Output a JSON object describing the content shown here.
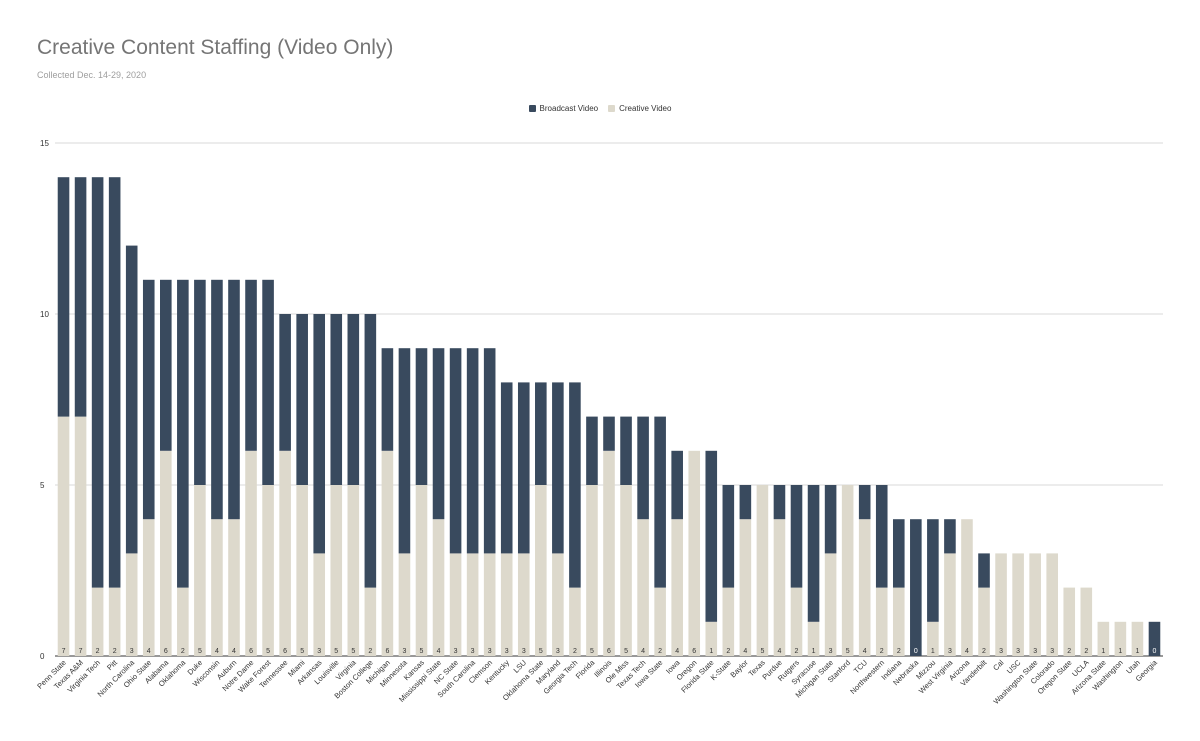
{
  "title": "Creative Content Staffing (Video Only)",
  "subtitle": "Collected Dec. 14-29, 2020",
  "colors": {
    "broadcast": "#394a5e",
    "creative": "#ddd9cc",
    "grid": "#d9d9d9",
    "axis": "#333333"
  },
  "chart_data": {
    "type": "bar",
    "stacked": true,
    "title": "Creative Content Staffing (Video Only)",
    "subtitle": "Collected Dec. 14-29, 2020",
    "legend_position": "top",
    "grid": true,
    "ylim": [
      0,
      15
    ],
    "yticks": [
      "0",
      "5",
      "10",
      "15"
    ],
    "categories": [
      "Penn State",
      "Texas A&M",
      "Virginia Tech",
      "Pitt",
      "North Carolina",
      "Ohio State",
      "Alabama",
      "Oklahoma",
      "Duke",
      "Wisconsin",
      "Auburn",
      "Notre Dame",
      "Wake Forest",
      "Tennessee",
      "Miami",
      "Arkansas",
      "Louisville",
      "Virginia",
      "Boston College",
      "Michigan",
      "Minnesota",
      "Kansas",
      "Mississippi State",
      "NC State",
      "South Carolina",
      "Clemson",
      "Kentucky",
      "LSU",
      "Oklahoma State",
      "Maryland",
      "Georgia Tech",
      "Florida",
      "Illinois",
      "Ole Miss",
      "Texas Tech",
      "Iowa State",
      "Iowa",
      "Oregon",
      "Florida State",
      "K-State",
      "Baylor",
      "Texas",
      "Purdue",
      "Rutgers",
      "Syracuse",
      "Michigan State",
      "Stanford",
      "TCU",
      "Northwestern",
      "Indiana",
      "Nebraska",
      "Mizzou",
      "West Virginia",
      "Arizona",
      "Vanderbilt",
      "Cal",
      "USC",
      "Washington State",
      "Colorado",
      "Oregon State",
      "UCLA",
      "Arizona State",
      "Washington",
      "Utah",
      "Georgia"
    ],
    "series": [
      {
        "name": "Broadcast Video",
        "values": [
          7,
          7,
          12,
          12,
          9,
          7,
          5,
          9,
          6,
          7,
          7,
          5,
          6,
          4,
          5,
          7,
          5,
          5,
          8,
          3,
          6,
          4,
          5,
          6,
          6,
          6,
          5,
          5,
          3,
          5,
          6,
          2,
          1,
          2,
          3,
          5,
          2,
          0,
          5,
          3,
          1,
          0,
          1,
          3,
          4,
          2,
          0,
          1,
          3,
          2,
          4,
          3,
          1,
          0,
          1,
          0,
          0,
          0,
          0,
          0,
          0,
          0,
          0,
          0,
          1
        ]
      },
      {
        "name": "Creative Video",
        "values": [
          7,
          7,
          2,
          2,
          3,
          4,
          6,
          2,
          5,
          4,
          4,
          6,
          5,
          6,
          5,
          3,
          5,
          5,
          2,
          6,
          3,
          5,
          4,
          3,
          3,
          3,
          3,
          3,
          5,
          3,
          2,
          5,
          6,
          5,
          4,
          2,
          4,
          6,
          1,
          2,
          4,
          5,
          4,
          2,
          1,
          3,
          5,
          4,
          2,
          2,
          0,
          1,
          3,
          4,
          2,
          3,
          3,
          3,
          3,
          2,
          2,
          1,
          1,
          1,
          0
        ]
      }
    ],
    "data_labels": [
      "7",
      "7",
      "2",
      "2",
      "3",
      "4",
      "6",
      "2",
      "5",
      "4",
      "4",
      "6",
      "5",
      "6",
      "5",
      "3",
      "5",
      "5",
      "2",
      "6",
      "3",
      "5",
      "4",
      "3",
      "3",
      "3",
      "3",
      "3",
      "5",
      "3",
      "2",
      "5",
      "6",
      "5",
      "4",
      "2",
      "4",
      "6",
      "1",
      "2",
      "4",
      "5",
      "4",
      "2",
      "1",
      "3",
      "5",
      "4",
      "2",
      "2",
      "0",
      "1",
      "3",
      "4",
      "2",
      "3",
      "3",
      "3",
      "3",
      "2",
      "2",
      "1",
      "1",
      "1",
      "0"
    ]
  }
}
